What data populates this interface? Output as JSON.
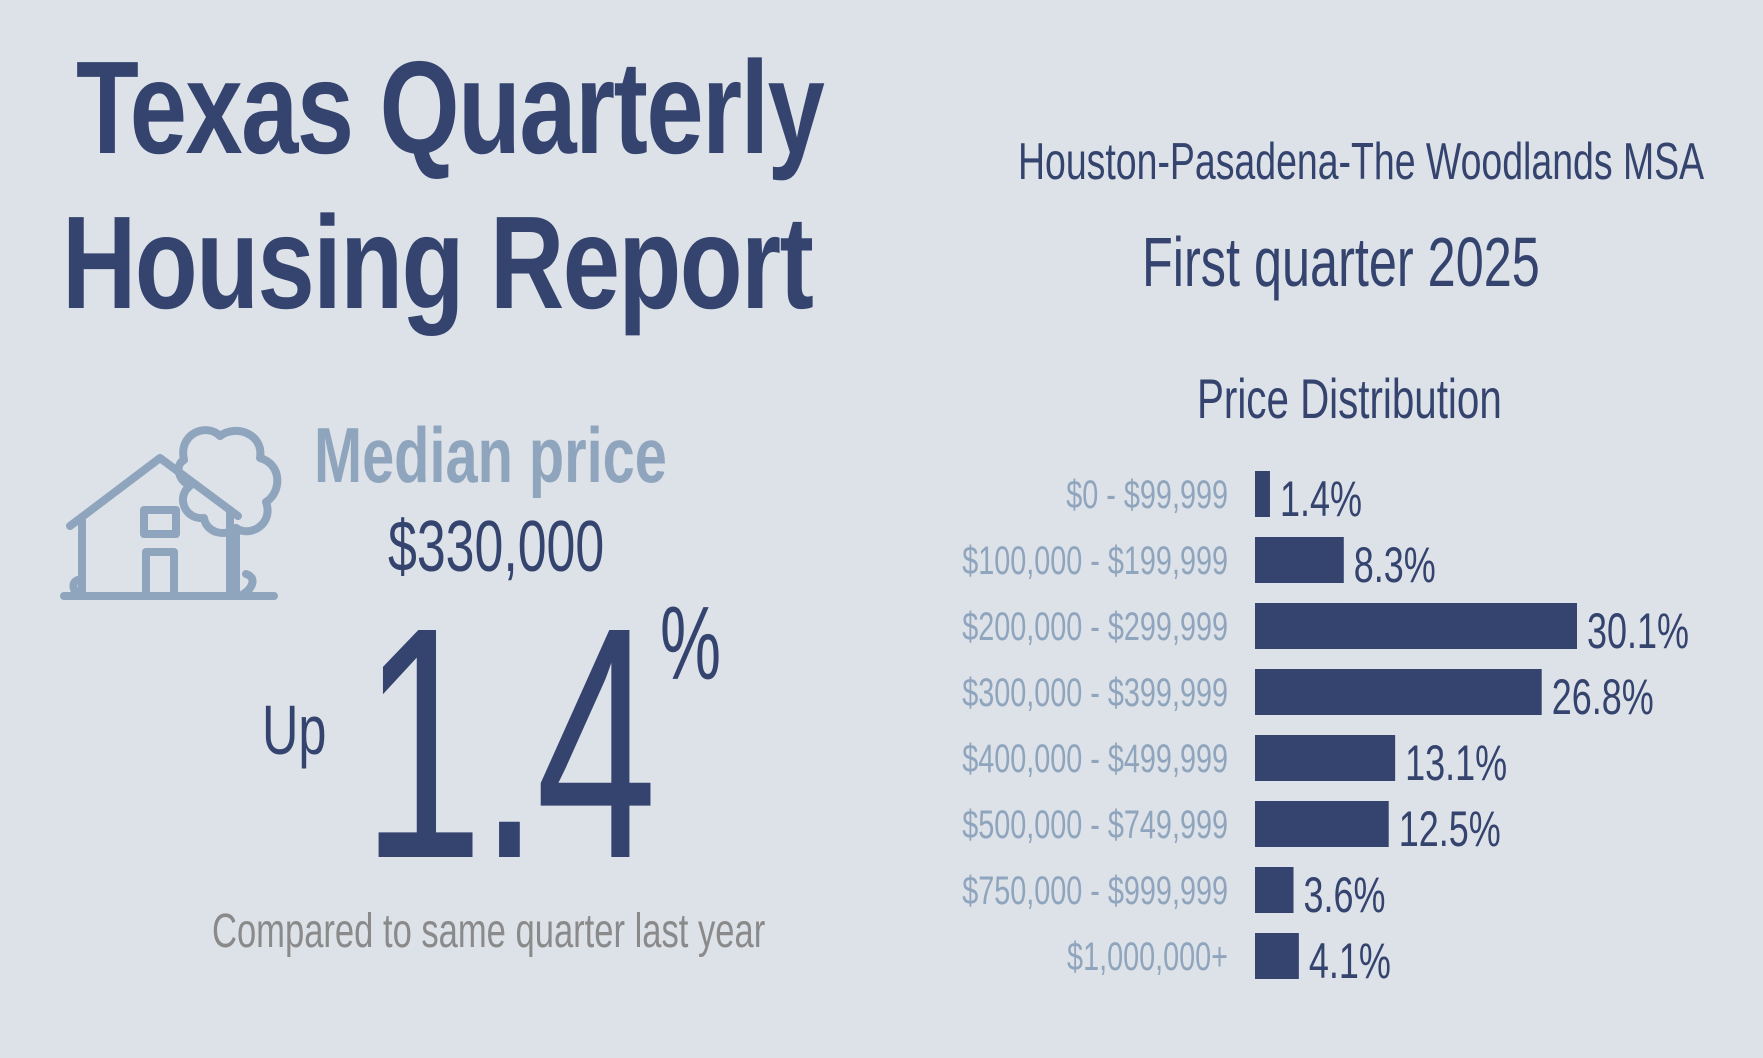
{
  "header": {
    "title_line1": "Texas Quarterly",
    "title_line2": "Housing Report",
    "region": "Houston-Pasadena-The Woodlands MSA",
    "period": "First quarter 2025"
  },
  "median": {
    "label": "Median price",
    "value": "$330,000",
    "direction": "Up",
    "change": "1.4",
    "change_unit": "%",
    "comparison": "Compared to same quarter last year"
  },
  "icons": {
    "house": "house-with-tree-icon"
  },
  "colors": {
    "primary": "#34446e",
    "muted": "#8fa5bd",
    "background": "#dde1e8",
    "caption": "#8a8a8a"
  },
  "chart_data": {
    "type": "bar",
    "orientation": "horizontal",
    "title": "Price Distribution",
    "categories": [
      "$0 - $99,999",
      "$100,000 - $199,999",
      "$200,000 - $299,999",
      "$300,000 - $399,999",
      "$400,000 - $499,999",
      "$500,000 - $749,999",
      "$750,000 - $999,999",
      "$1,000,000+"
    ],
    "values": [
      1.4,
      8.3,
      30.1,
      26.8,
      13.1,
      12.5,
      3.6,
      4.1
    ],
    "value_labels": [
      "1.4%",
      "8.3%",
      "30.1%",
      "26.8%",
      "13.1%",
      "12.5%",
      "3.6%",
      "4.1%"
    ],
    "unit": "%",
    "grid": false
  }
}
